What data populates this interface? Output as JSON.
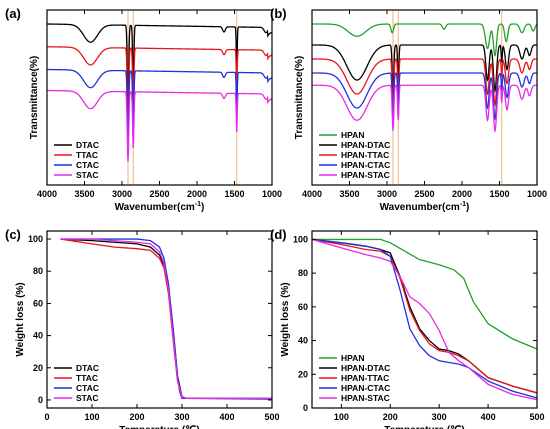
{
  "colors": {
    "black": "#000000",
    "red": "#e8141b",
    "blue": "#1f31e0",
    "magenta": "#e62ae6",
    "green": "#22a22d",
    "marker": "#f2b27a"
  },
  "chart_data": [
    {
      "id": "a",
      "type": "line",
      "panel_label": "(a)",
      "xlabel": "Wavenumber(cm",
      "xlabel_sup": "-1",
      "xlabel_close": ")",
      "ylabel": "Transmittance(%)",
      "xlim": [
        4000,
        1000
      ],
      "x_reversed": true,
      "y_ticks_shown": false,
      "x_ticks": [
        4000,
        3500,
        3000,
        2500,
        2000,
        1500,
        1000
      ],
      "vlines": [
        2920,
        2850,
        1470
      ],
      "legend": "bottom-left",
      "series": [
        {
          "name": "DTAC",
          "color": "black",
          "offset": 0.9,
          "profile": "quat"
        },
        {
          "name": "TTAC",
          "color": "red",
          "offset": 0.77,
          "profile": "quat"
        },
        {
          "name": "CTAC",
          "color": "blue",
          "offset": 0.64,
          "profile": "quat"
        },
        {
          "name": "STAC",
          "color": "magenta",
          "offset": 0.52,
          "profile": "quat"
        }
      ]
    },
    {
      "id": "b",
      "type": "line",
      "panel_label": "(b)",
      "xlabel": "Wavenumber(cm",
      "xlabel_sup": "-1",
      "xlabel_close": ")",
      "ylabel": "Transmittance(%)",
      "xlim": [
        4000,
        1000
      ],
      "x_reversed": true,
      "y_ticks_shown": false,
      "x_ticks": [
        4000,
        3500,
        3000,
        2500,
        2000,
        1500,
        1000
      ],
      "vlines": [
        2920,
        2850,
        1470
      ],
      "legend": "bottom-left",
      "series": [
        {
          "name": "HPAN",
          "color": "green",
          "offset": 0.92,
          "profile": "hpan"
        },
        {
          "name": "HPAN-DTAC",
          "color": "black",
          "offset": 0.8,
          "profile": "hpanq"
        },
        {
          "name": "HPAN-TTAC",
          "color": "red",
          "offset": 0.72,
          "profile": "hpanq"
        },
        {
          "name": "HPAN-CTAC",
          "color": "blue",
          "offset": 0.64,
          "profile": "hpanq"
        },
        {
          "name": "HPAN-STAC",
          "color": "magenta",
          "offset": 0.57,
          "profile": "hpanq"
        }
      ]
    },
    {
      "id": "c",
      "type": "line",
      "panel_label": "(c)",
      "xlabel": "Temperature (℃)",
      "ylabel": "Weight loss (%)",
      "xlim": [
        0,
        500
      ],
      "ylim": [
        -5,
        105
      ],
      "x_ticks": [
        0,
        100,
        200,
        300,
        400,
        500
      ],
      "y_ticks": [
        0,
        20,
        40,
        60,
        80,
        100
      ],
      "legend": "bottom-left",
      "series": [
        {
          "name": "DTAC",
          "color": "black",
          "x": [
            30,
            100,
            150,
            200,
            230,
            250,
            260,
            270,
            280,
            290,
            300,
            310,
            500
          ],
          "y": [
            100,
            99,
            98,
            97,
            95,
            90,
            84,
            70,
            45,
            15,
            2,
            1,
            1
          ]
        },
        {
          "name": "TTAC",
          "color": "red",
          "x": [
            30,
            100,
            150,
            200,
            230,
            250,
            260,
            270,
            280,
            290,
            300,
            305,
            500
          ],
          "y": [
            100,
            97,
            95,
            94,
            93,
            88,
            82,
            66,
            38,
            12,
            2,
            1,
            1
          ]
        },
        {
          "name": "CTAC",
          "color": "blue",
          "x": [
            30,
            100,
            150,
            200,
            230,
            250,
            260,
            270,
            280,
            290,
            295,
            300,
            500
          ],
          "y": [
            100,
            100,
            100,
            100,
            99,
            95,
            88,
            72,
            45,
            15,
            5,
            1,
            0.5
          ]
        },
        {
          "name": "STAC",
          "color": "magenta",
          "x": [
            30,
            100,
            150,
            200,
            230,
            250,
            260,
            270,
            280,
            290,
            300,
            310,
            500
          ],
          "y": [
            100,
            100,
            99,
            98,
            97,
            92,
            85,
            68,
            40,
            12,
            2,
            1,
            1
          ]
        }
      ]
    },
    {
      "id": "d",
      "type": "line",
      "panel_label": "(d)",
      "xlabel": "Temperature (℃)",
      "ylabel": "Weight loss (%)",
      "xlim": [
        40,
        500
      ],
      "ylim": [
        0,
        105
      ],
      "x_ticks": [
        100,
        200,
        300,
        400,
        500
      ],
      "y_ticks": [
        0,
        20,
        40,
        60,
        80,
        100
      ],
      "legend": "bottom-left",
      "series": [
        {
          "name": "HPAN",
          "color": "green",
          "x": [
            40,
            100,
            150,
            180,
            200,
            230,
            260,
            300,
            330,
            350,
            370,
            400,
            450,
            500
          ],
          "y": [
            100,
            100,
            100,
            100,
            98,
            93,
            88,
            85,
            82,
            77,
            63,
            50,
            41,
            35
          ]
        },
        {
          "name": "HPAN-DTAC",
          "color": "black",
          "x": [
            40,
            100,
            150,
            180,
            200,
            220,
            240,
            260,
            280,
            300,
            320,
            340,
            360,
            400,
            450,
            500
          ],
          "y": [
            100,
            98,
            96,
            94,
            92,
            78,
            60,
            47,
            40,
            35,
            34,
            32,
            28,
            18,
            13,
            9
          ]
        },
        {
          "name": "HPAN-TTAC",
          "color": "red",
          "x": [
            40,
            100,
            150,
            180,
            200,
            220,
            240,
            260,
            280,
            300,
            320,
            340,
            360,
            400,
            450,
            500
          ],
          "y": [
            100,
            97,
            94,
            93,
            90,
            77,
            58,
            46,
            38,
            34,
            33,
            31,
            28,
            18,
            13,
            9
          ]
        },
        {
          "name": "HPAN-CTAC",
          "color": "blue",
          "x": [
            40,
            100,
            150,
            180,
            200,
            220,
            240,
            260,
            280,
            300,
            320,
            340,
            360,
            400,
            450,
            500
          ],
          "y": [
            100,
            98,
            96,
            94,
            90,
            70,
            47,
            37,
            31,
            28,
            27,
            26,
            24,
            16,
            10,
            6
          ]
        },
        {
          "name": "HPAN-STAC",
          "color": "magenta",
          "x": [
            40,
            100,
            150,
            180,
            200,
            220,
            240,
            260,
            280,
            300,
            320,
            340,
            360,
            400,
            450,
            500
          ],
          "y": [
            100,
            95,
            91,
            89,
            87,
            78,
            66,
            62,
            56,
            46,
            33,
            28,
            24,
            14,
            8,
            5
          ]
        }
      ]
    }
  ]
}
